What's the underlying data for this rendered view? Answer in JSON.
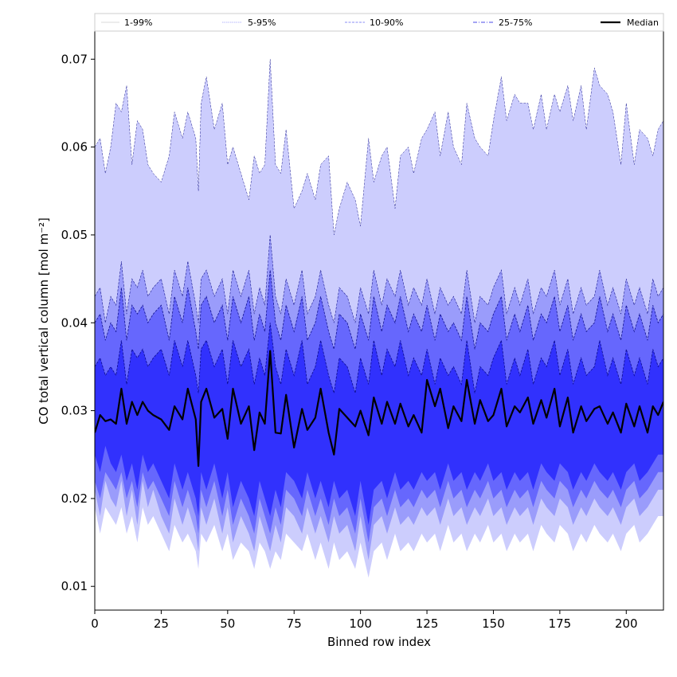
{
  "chart_data": {
    "type": "area",
    "title": "",
    "xlabel": "Binned row index",
    "ylabel": "CO total vertical column [mol m⁻²]",
    "xlim": [
      0,
      214
    ],
    "ylim": [
      0.0073,
      0.0732
    ],
    "xticks": [
      0,
      25,
      50,
      75,
      100,
      125,
      150,
      175,
      200
    ],
    "yticks": [
      0.01,
      0.02,
      0.03,
      0.04,
      0.05,
      0.06,
      0.07
    ],
    "ytick_labels": [
      "0.01",
      "0.02",
      "0.03",
      "0.04",
      "0.05",
      "0.06",
      "0.07"
    ],
    "legend_position": "top",
    "legend": [
      "1-99%",
      "5-95%",
      "10-90%",
      "25-75%",
      "Median"
    ],
    "colors": {
      "band_1_99": "#cccdfd",
      "band_5_95": "#9a9cfb",
      "band_10_90": "#6667fd",
      "band_25_75": "#3131fd",
      "median": "#000000",
      "boundary": "#000080"
    },
    "x_knots": [
      0,
      2,
      4,
      6,
      8,
      10,
      12,
      14,
      16,
      18,
      20,
      22,
      25,
      28,
      30,
      33,
      35,
      38,
      39,
      40,
      42,
      45,
      48,
      50,
      52,
      55,
      58,
      60,
      62,
      64,
      66,
      68,
      70,
      72,
      75,
      78,
      80,
      83,
      85,
      88,
      90,
      92,
      95,
      98,
      100,
      103,
      105,
      108,
      110,
      113,
      115,
      118,
      120,
      123,
      125,
      128,
      130,
      133,
      135,
      138,
      140,
      143,
      145,
      148,
      150,
      153,
      155,
      158,
      160,
      163,
      165,
      168,
      170,
      173,
      175,
      178,
      180,
      183,
      185,
      188,
      190,
      193,
      195,
      198,
      200,
      203,
      205,
      208,
      210,
      212,
      214
    ],
    "series": [
      {
        "name": "1-99%",
        "kind": "band",
        "lower_percentile": 1,
        "upper_percentile": 99,
        "upper": [
          0.06,
          0.061,
          0.057,
          0.06,
          0.065,
          0.064,
          0.067,
          0.058,
          0.063,
          0.062,
          0.058,
          0.057,
          0.056,
          0.059,
          0.064,
          0.061,
          0.064,
          0.061,
          0.055,
          0.065,
          0.068,
          0.062,
          0.065,
          0.058,
          0.06,
          0.057,
          0.054,
          0.059,
          0.057,
          0.058,
          0.07,
          0.058,
          0.057,
          0.062,
          0.053,
          0.055,
          0.057,
          0.054,
          0.058,
          0.059,
          0.05,
          0.053,
          0.056,
          0.054,
          0.051,
          0.061,
          0.056,
          0.059,
          0.06,
          0.053,
          0.059,
          0.06,
          0.057,
          0.061,
          0.062,
          0.064,
          0.059,
          0.064,
          0.06,
          0.058,
          0.065,
          0.061,
          0.06,
          0.059,
          0.063,
          0.068,
          0.063,
          0.066,
          0.065,
          0.065,
          0.062,
          0.066,
          0.062,
          0.066,
          0.064,
          0.067,
          0.063,
          0.067,
          0.062,
          0.069,
          0.067,
          0.066,
          0.064,
          0.058,
          0.065,
          0.058,
          0.062,
          0.061,
          0.059,
          0.062,
          0.063
        ],
        "lower": [
          0.019,
          0.016,
          0.019,
          0.018,
          0.017,
          0.019,
          0.016,
          0.018,
          0.015,
          0.019,
          0.017,
          0.018,
          0.016,
          0.014,
          0.017,
          0.015,
          0.016,
          0.014,
          0.012,
          0.016,
          0.015,
          0.017,
          0.014,
          0.016,
          0.013,
          0.015,
          0.014,
          0.012,
          0.015,
          0.014,
          0.012,
          0.014,
          0.013,
          0.016,
          0.015,
          0.014,
          0.016,
          0.013,
          0.015,
          0.012,
          0.015,
          0.013,
          0.014,
          0.012,
          0.015,
          0.011,
          0.014,
          0.015,
          0.013,
          0.016,
          0.014,
          0.015,
          0.014,
          0.016,
          0.015,
          0.016,
          0.014,
          0.017,
          0.015,
          0.016,
          0.014,
          0.016,
          0.015,
          0.017,
          0.015,
          0.016,
          0.014,
          0.016,
          0.015,
          0.016,
          0.014,
          0.017,
          0.016,
          0.015,
          0.017,
          0.016,
          0.014,
          0.016,
          0.015,
          0.017,
          0.016,
          0.015,
          0.016,
          0.014,
          0.016,
          0.017,
          0.015,
          0.016,
          0.017,
          0.018,
          0.018
        ]
      },
      {
        "name": "5-95%",
        "kind": "band",
        "lower_percentile": 5,
        "upper_percentile": 95,
        "upper": [
          0.043,
          0.044,
          0.04,
          0.043,
          0.042,
          0.047,
          0.041,
          0.045,
          0.044,
          0.046,
          0.043,
          0.044,
          0.045,
          0.041,
          0.046,
          0.043,
          0.047,
          0.042,
          0.04,
          0.045,
          0.046,
          0.043,
          0.045,
          0.041,
          0.046,
          0.043,
          0.046,
          0.041,
          0.044,
          0.042,
          0.05,
          0.043,
          0.041,
          0.045,
          0.042,
          0.046,
          0.041,
          0.043,
          0.046,
          0.042,
          0.04,
          0.044,
          0.043,
          0.04,
          0.044,
          0.041,
          0.046,
          0.042,
          0.045,
          0.043,
          0.046,
          0.042,
          0.044,
          0.042,
          0.045,
          0.041,
          0.044,
          0.042,
          0.043,
          0.041,
          0.046,
          0.04,
          0.043,
          0.042,
          0.044,
          0.046,
          0.041,
          0.044,
          0.042,
          0.045,
          0.041,
          0.044,
          0.043,
          0.046,
          0.042,
          0.045,
          0.041,
          0.044,
          0.042,
          0.043,
          0.046,
          0.042,
          0.044,
          0.041,
          0.045,
          0.042,
          0.044,
          0.041,
          0.045,
          0.043,
          0.044
        ],
        "lower": [
          0.021,
          0.018,
          0.022,
          0.02,
          0.019,
          0.022,
          0.018,
          0.021,
          0.017,
          0.022,
          0.019,
          0.021,
          0.018,
          0.016,
          0.02,
          0.017,
          0.019,
          0.016,
          0.014,
          0.019,
          0.017,
          0.02,
          0.016,
          0.019,
          0.015,
          0.018,
          0.016,
          0.014,
          0.018,
          0.016,
          0.014,
          0.017,
          0.015,
          0.019,
          0.018,
          0.016,
          0.019,
          0.016,
          0.018,
          0.015,
          0.018,
          0.016,
          0.017,
          0.014,
          0.018,
          0.013,
          0.017,
          0.018,
          0.016,
          0.019,
          0.017,
          0.018,
          0.017,
          0.019,
          0.018,
          0.019,
          0.017,
          0.02,
          0.018,
          0.019,
          0.017,
          0.019,
          0.018,
          0.02,
          0.018,
          0.019,
          0.017,
          0.019,
          0.018,
          0.019,
          0.017,
          0.02,
          0.019,
          0.018,
          0.02,
          0.019,
          0.017,
          0.019,
          0.018,
          0.02,
          0.019,
          0.018,
          0.019,
          0.017,
          0.019,
          0.02,
          0.018,
          0.019,
          0.02,
          0.021,
          0.021
        ]
      },
      {
        "name": "10-90%",
        "kind": "band",
        "lower_percentile": 10,
        "upper_percentile": 90,
        "upper": [
          0.04,
          0.041,
          0.038,
          0.04,
          0.039,
          0.044,
          0.038,
          0.042,
          0.041,
          0.042,
          0.04,
          0.041,
          0.042,
          0.038,
          0.043,
          0.04,
          0.044,
          0.039,
          0.037,
          0.042,
          0.043,
          0.04,
          0.042,
          0.038,
          0.043,
          0.04,
          0.043,
          0.038,
          0.041,
          0.039,
          0.046,
          0.04,
          0.038,
          0.042,
          0.039,
          0.043,
          0.038,
          0.04,
          0.043,
          0.039,
          0.037,
          0.041,
          0.04,
          0.037,
          0.041,
          0.038,
          0.043,
          0.039,
          0.042,
          0.04,
          0.043,
          0.039,
          0.041,
          0.039,
          0.042,
          0.038,
          0.041,
          0.039,
          0.04,
          0.038,
          0.043,
          0.037,
          0.04,
          0.039,
          0.041,
          0.043,
          0.038,
          0.041,
          0.039,
          0.042,
          0.038,
          0.041,
          0.04,
          0.043,
          0.039,
          0.042,
          0.038,
          0.041,
          0.039,
          0.04,
          0.043,
          0.039,
          0.041,
          0.038,
          0.042,
          0.039,
          0.041,
          0.038,
          0.042,
          0.04,
          0.041
        ],
        "lower": [
          0.022,
          0.02,
          0.023,
          0.022,
          0.021,
          0.023,
          0.02,
          0.022,
          0.019,
          0.023,
          0.021,
          0.022,
          0.02,
          0.018,
          0.022,
          0.019,
          0.021,
          0.018,
          0.016,
          0.021,
          0.019,
          0.022,
          0.018,
          0.021,
          0.017,
          0.02,
          0.018,
          0.016,
          0.02,
          0.018,
          0.016,
          0.019,
          0.017,
          0.021,
          0.02,
          0.018,
          0.021,
          0.018,
          0.02,
          0.017,
          0.02,
          0.018,
          0.019,
          0.016,
          0.02,
          0.015,
          0.019,
          0.02,
          0.018,
          0.021,
          0.019,
          0.02,
          0.019,
          0.021,
          0.02,
          0.021,
          0.019,
          0.022,
          0.02,
          0.021,
          0.019,
          0.021,
          0.02,
          0.022,
          0.02,
          0.021,
          0.019,
          0.021,
          0.02,
          0.021,
          0.019,
          0.022,
          0.021,
          0.02,
          0.022,
          0.021,
          0.019,
          0.021,
          0.02,
          0.022,
          0.021,
          0.02,
          0.021,
          0.019,
          0.021,
          0.022,
          0.02,
          0.021,
          0.022,
          0.023,
          0.023
        ]
      },
      {
        "name": "25-75%",
        "kind": "band",
        "lower_percentile": 25,
        "upper_percentile": 75,
        "upper": [
          0.035,
          0.036,
          0.034,
          0.035,
          0.034,
          0.038,
          0.033,
          0.037,
          0.036,
          0.037,
          0.035,
          0.036,
          0.037,
          0.034,
          0.038,
          0.035,
          0.038,
          0.034,
          0.032,
          0.037,
          0.038,
          0.035,
          0.037,
          0.033,
          0.038,
          0.035,
          0.037,
          0.033,
          0.036,
          0.034,
          0.04,
          0.035,
          0.033,
          0.037,
          0.034,
          0.038,
          0.033,
          0.035,
          0.038,
          0.034,
          0.032,
          0.036,
          0.035,
          0.032,
          0.036,
          0.033,
          0.038,
          0.034,
          0.037,
          0.035,
          0.038,
          0.034,
          0.036,
          0.034,
          0.037,
          0.033,
          0.036,
          0.034,
          0.035,
          0.033,
          0.038,
          0.032,
          0.035,
          0.034,
          0.036,
          0.038,
          0.033,
          0.036,
          0.034,
          0.037,
          0.033,
          0.036,
          0.035,
          0.038,
          0.034,
          0.037,
          0.033,
          0.036,
          0.034,
          0.035,
          0.038,
          0.034,
          0.036,
          0.033,
          0.037,
          0.034,
          0.036,
          0.033,
          0.037,
          0.035,
          0.036
        ],
        "lower": [
          0.025,
          0.023,
          0.026,
          0.024,
          0.023,
          0.025,
          0.022,
          0.024,
          0.021,
          0.025,
          0.023,
          0.024,
          0.022,
          0.02,
          0.024,
          0.021,
          0.023,
          0.02,
          0.018,
          0.023,
          0.021,
          0.024,
          0.02,
          0.023,
          0.019,
          0.022,
          0.02,
          0.018,
          0.022,
          0.02,
          0.018,
          0.021,
          0.019,
          0.023,
          0.022,
          0.02,
          0.023,
          0.02,
          0.022,
          0.019,
          0.022,
          0.02,
          0.021,
          0.018,
          0.022,
          0.017,
          0.021,
          0.022,
          0.02,
          0.023,
          0.021,
          0.022,
          0.021,
          0.023,
          0.022,
          0.023,
          0.021,
          0.024,
          0.022,
          0.023,
          0.021,
          0.023,
          0.022,
          0.024,
          0.022,
          0.023,
          0.021,
          0.023,
          0.022,
          0.023,
          0.021,
          0.024,
          0.023,
          0.022,
          0.024,
          0.023,
          0.021,
          0.023,
          0.022,
          0.024,
          0.023,
          0.022,
          0.023,
          0.021,
          0.023,
          0.024,
          0.022,
          0.023,
          0.024,
          0.025,
          0.025
        ]
      },
      {
        "name": "Median",
        "kind": "line",
        "values": [
          0.0275,
          0.0295,
          0.0288,
          0.029,
          0.0285,
          0.0325,
          0.0285,
          0.031,
          0.0295,
          0.031,
          0.03,
          0.0295,
          0.029,
          0.0278,
          0.0305,
          0.029,
          0.0325,
          0.029,
          0.0237,
          0.031,
          0.0325,
          0.0292,
          0.0302,
          0.0268,
          0.0325,
          0.0285,
          0.0305,
          0.0255,
          0.0298,
          0.0285,
          0.0368,
          0.0275,
          0.0274,
          0.0318,
          0.0258,
          0.0302,
          0.0278,
          0.0292,
          0.0325,
          0.0275,
          0.025,
          0.0302,
          0.0292,
          0.0282,
          0.03,
          0.0272,
          0.0315,
          0.0285,
          0.031,
          0.0285,
          0.0308,
          0.0282,
          0.0295,
          0.0275,
          0.0335,
          0.0305,
          0.0325,
          0.028,
          0.0305,
          0.0288,
          0.0335,
          0.0285,
          0.0312,
          0.0288,
          0.0295,
          0.0325,
          0.0282,
          0.0305,
          0.0298,
          0.0315,
          0.0285,
          0.0312,
          0.0292,
          0.0325,
          0.0282,
          0.0315,
          0.0275,
          0.0305,
          0.0288,
          0.0302,
          0.0305,
          0.0285,
          0.0298,
          0.0275,
          0.0308,
          0.0282,
          0.0305,
          0.0275,
          0.0305,
          0.0295,
          0.031
        ]
      }
    ]
  }
}
